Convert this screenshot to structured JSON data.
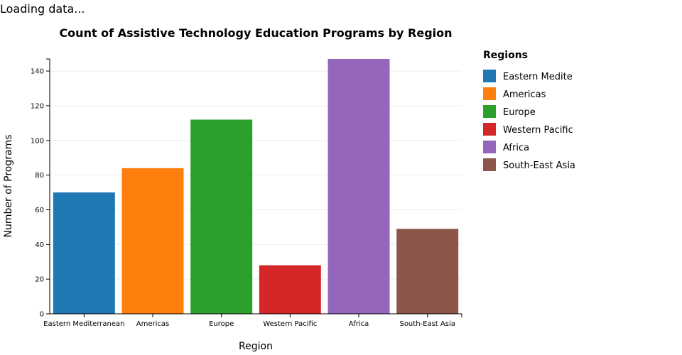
{
  "status_text": "Loading data...",
  "chart_data": {
    "type": "bar",
    "title": "Count of Assistive Technology Education Programs by Region",
    "xlabel": "Region",
    "ylabel": "Number of Programs",
    "categories": [
      "Eastern Mediterranean",
      "Americas",
      "Europe",
      "Western Pacific",
      "Africa",
      "South-East Asia"
    ],
    "values": [
      70,
      84,
      112,
      28,
      147,
      49
    ],
    "colors": [
      "#1f77b4",
      "#ff7f0e",
      "#2ca02c",
      "#d62728",
      "#9467bd",
      "#8c564b"
    ],
    "ylim": [
      0,
      147
    ],
    "yticks": [
      0,
      20,
      40,
      60,
      80,
      100,
      120,
      140
    ],
    "grid": true,
    "legend": {
      "title": "Regions",
      "placement": "right",
      "labels": [
        "Eastern Medite",
        "Americas",
        "Europe",
        "Western Pacific",
        "Africa",
        "South-East Asia"
      ]
    }
  }
}
